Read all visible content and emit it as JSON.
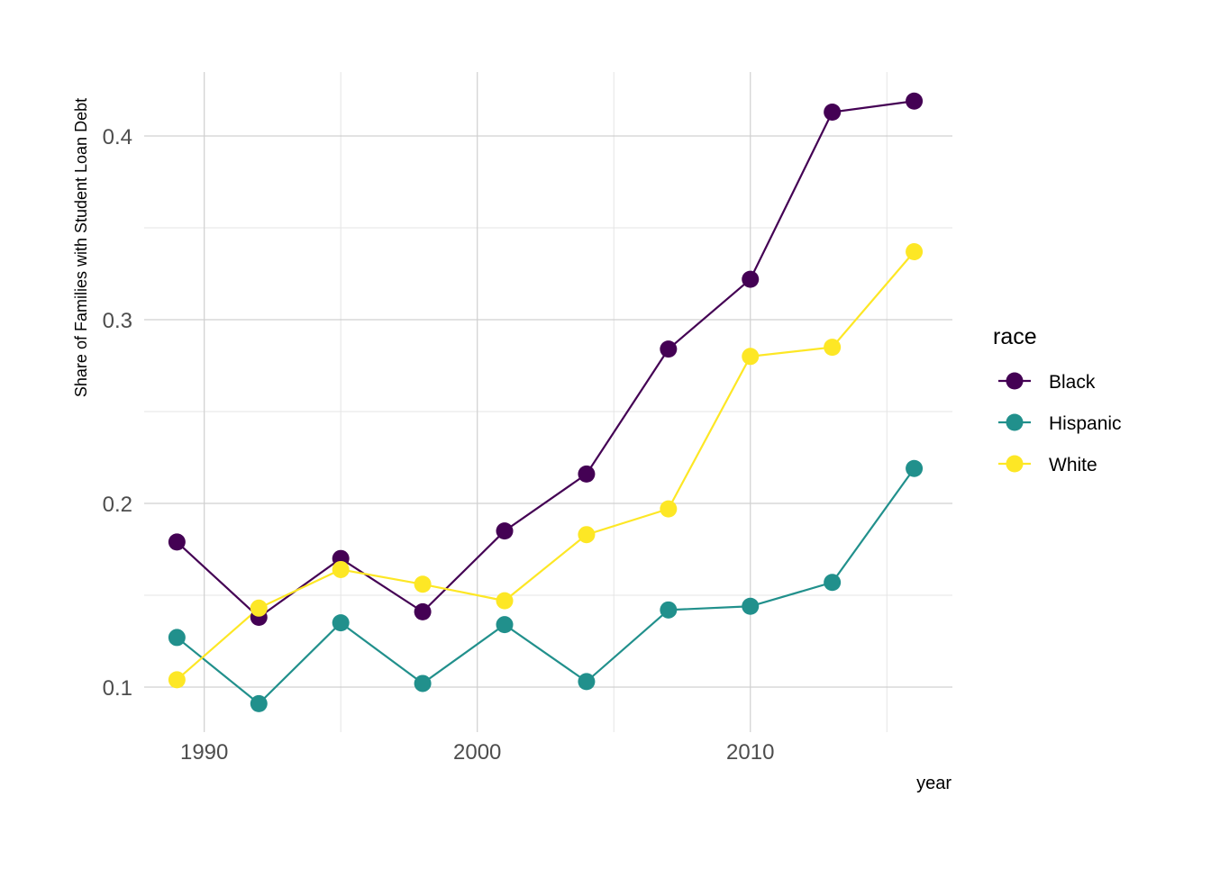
{
  "chart_data": {
    "type": "line",
    "title": "",
    "xlabel": "year",
    "ylabel": "Share of Families with Student Loan Debt",
    "x": [
      1989,
      1992,
      1995,
      1998,
      2001,
      2004,
      2007,
      2010,
      2013,
      2016
    ],
    "xlim": [
      1987.8,
      2017.4
    ],
    "ylim": [
      0.0755,
      0.4348
    ],
    "xticks": [
      1990,
      2000,
      2010
    ],
    "xtick_labels": [
      "1990",
      "2000",
      "2010"
    ],
    "yticks": [
      0.1,
      0.2,
      0.3,
      0.4
    ],
    "ytick_labels": [
      "0.1",
      "0.2",
      "0.3",
      "0.4"
    ],
    "x_minor": [
      1995,
      2005,
      2015
    ],
    "y_minor": [
      0.15,
      0.25,
      0.35
    ],
    "grid": true,
    "legend": {
      "title": "race",
      "placement": "right"
    },
    "series": [
      {
        "name": "Black",
        "color": "#440154",
        "values": [
          0.179,
          0.138,
          0.17,
          0.141,
          0.185,
          0.216,
          0.284,
          0.322,
          0.413,
          0.419
        ]
      },
      {
        "name": "Hispanic",
        "color": "#21908C",
        "values": [
          0.127,
          0.091,
          0.135,
          0.102,
          0.134,
          0.103,
          0.142,
          0.144,
          0.157,
          0.219
        ]
      },
      {
        "name": "White",
        "color": "#FDE725",
        "values": [
          0.104,
          0.143,
          0.164,
          0.156,
          0.147,
          0.183,
          0.197,
          0.28,
          0.285,
          0.337
        ]
      }
    ]
  }
}
